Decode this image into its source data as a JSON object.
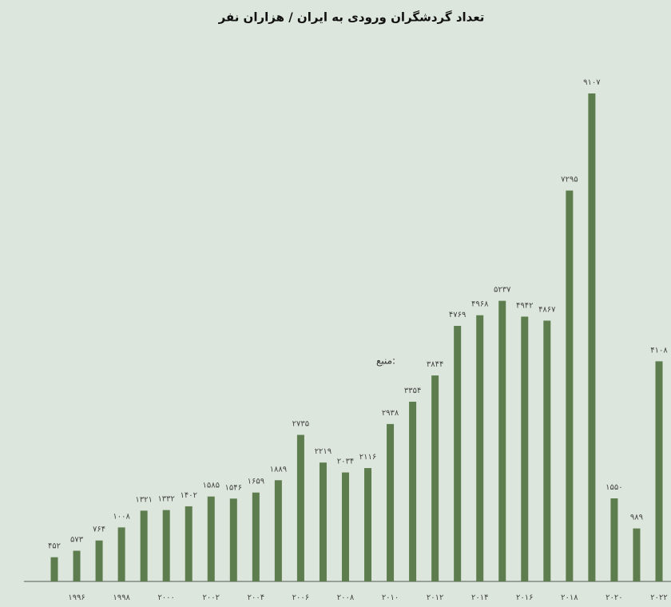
{
  "chart_data": {
    "type": "bar",
    "title": "تعداد گردشگران ورودی به ایران / هزاران نفر",
    "annotation": "منبع:",
    "categories": [
      null,
      "۱۹۹۶",
      null,
      "۱۹۹۸",
      null,
      "۲۰۰۰",
      null,
      "۲۰۰۲",
      null,
      "۲۰۰۴",
      null,
      "۲۰۰۶",
      null,
      "۲۰۰۸",
      null,
      "۲۰۱۰",
      null,
      "۲۰۱۲",
      null,
      "۲۰۱۴",
      null,
      "۲۰۱۶",
      null,
      "۲۰۱۸",
      null,
      "۲۰۲۰",
      null,
      "۲۰۲۲"
    ],
    "values": [
      452,
      573,
      764,
      1008,
      1321,
      1332,
      1402,
      1585,
      1546,
      1659,
      1889,
      2735,
      2219,
      2034,
      2116,
      2938,
      3354,
      3844,
      4769,
      4968,
      5237,
      4942,
      4867,
      7295,
      9107,
      1550,
      989,
      4108
    ],
    "value_labels": [
      "۴۵۲",
      "۵۷۳",
      "۷۶۴",
      "۱۰۰۸",
      "۱۳۲۱",
      "۱۳۳۲",
      "۱۴۰۲",
      "۱۵۸۵",
      "۱۵۴۶",
      "۱۶۵۹",
      "۱۸۸۹",
      "۲۷۳۵",
      "۲۲۱۹",
      "۲۰۳۴",
      "۲۱۱۶",
      "۲۹۳۸",
      "۳۳۵۴",
      "۳۸۴۴",
      "۴۷۶۹",
      "۴۹۶۸",
      "۵۲۳۷",
      "۴۹۴۲",
      "۴۸۶۷",
      "۷۲۹۵",
      "۹۱۰۷",
      "۱۵۵۰",
      "۹۸۹",
      "۴۱۰۸"
    ],
    "color": "#5e7d4f"
  }
}
